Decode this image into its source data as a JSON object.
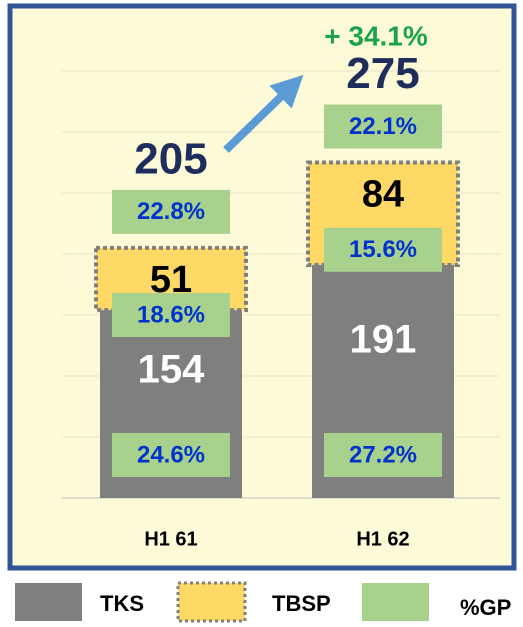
{
  "chart_data": {
    "type": "stacked_bar",
    "categories": [
      "H1 61",
      "H1 62"
    ],
    "series": [
      {
        "name": "TKS",
        "color": "#7f7f7f",
        "values": [
          154,
          191
        ],
        "gp_labels": [
          "24.6%",
          "27.2%"
        ]
      },
      {
        "name": "TBSP",
        "color": "#ffd966",
        "values": [
          51,
          84
        ],
        "gp_labels": [
          "18.6%",
          "15.6%"
        ]
      }
    ],
    "totals": [
      205,
      275
    ],
    "total_gp_labels": [
      "22.8%",
      "22.1%"
    ],
    "gp_legend": {
      "name": "%GP",
      "color": "#a9d18e"
    },
    "change_label": "+ 34.1%",
    "ylim": [
      0,
      400
    ],
    "yticks": [
      0,
      50,
      100,
      150,
      200,
      250,
      300,
      350
    ],
    "grid": true
  }
}
